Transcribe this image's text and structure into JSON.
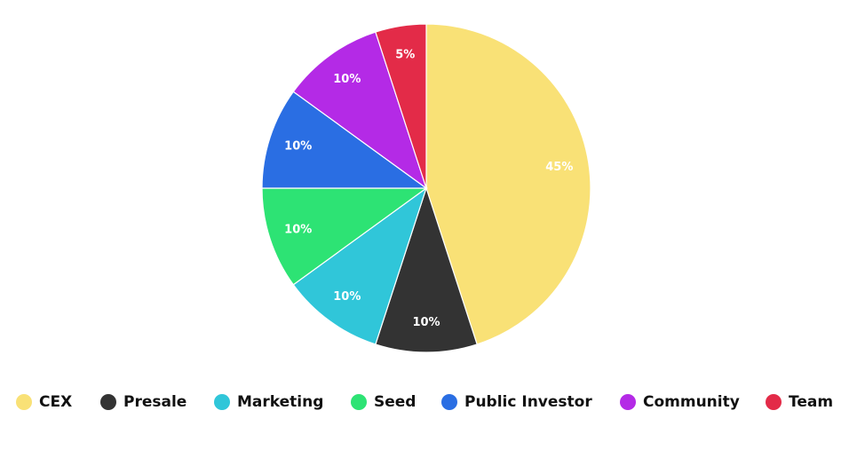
{
  "chart_data": {
    "type": "pie",
    "categories": [
      "CEX",
      "Presale",
      "Marketing",
      "Seed",
      "Public Investor",
      "Community",
      "Team"
    ],
    "values": [
      45,
      10,
      10,
      10,
      10,
      10,
      5
    ],
    "value_labels": [
      "45%",
      "10%",
      "10%",
      "10%",
      "10%",
      "10%",
      "5%"
    ],
    "colors": [
      "#F9E176",
      "#333333",
      "#30C6D9",
      "#2DE374",
      "#2A6EE3",
      "#B42AE6",
      "#E32B48"
    ],
    "legend_position": "bottom",
    "start_angle": "top",
    "direction": "clockwise"
  }
}
